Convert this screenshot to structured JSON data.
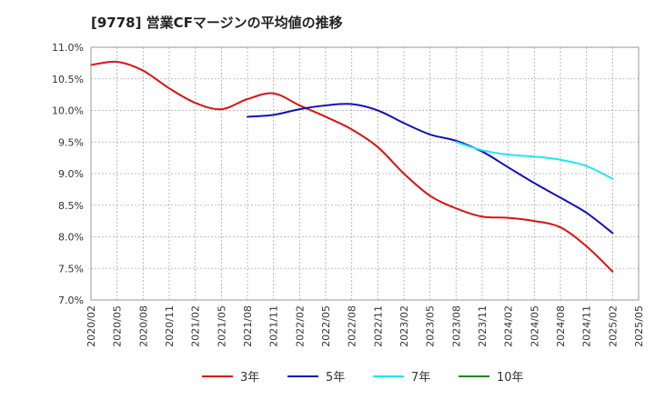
{
  "chart_data": {
    "type": "line",
    "title": "[9778]  営業CFマージンの平均値の推移",
    "xlabel": "",
    "ylabel": "",
    "ylim": [
      7.0,
      11.0
    ],
    "y_ticks": [
      "11.0%",
      "10.5%",
      "10.0%",
      "9.5%",
      "9.0%",
      "8.5%",
      "8.0%",
      "7.5%",
      "7.0%"
    ],
    "y_tick_values": [
      11.0,
      10.5,
      10.0,
      9.5,
      9.0,
      8.5,
      8.0,
      7.5,
      7.0
    ],
    "categories": [
      "2020/02",
      "2020/05",
      "2020/08",
      "2020/11",
      "2021/02",
      "2021/05",
      "2021/08",
      "2021/11",
      "2022/02",
      "2022/05",
      "2022/08",
      "2022/11",
      "2023/02",
      "2023/05",
      "2023/08",
      "2023/11",
      "2024/02",
      "2024/05",
      "2024/08",
      "2024/11",
      "2025/02",
      "2025/05"
    ],
    "grid": true,
    "legend_position": "bottom",
    "series": [
      {
        "name": "3年",
        "color": "#dd1111",
        "values": [
          10.72,
          10.77,
          10.63,
          10.35,
          10.12,
          10.02,
          10.18,
          10.27,
          10.08,
          9.9,
          9.7,
          9.42,
          9.0,
          8.65,
          8.45,
          8.32,
          8.3,
          8.25,
          8.15,
          7.85,
          7.45,
          null
        ]
      },
      {
        "name": "5年",
        "color": "#1111bb",
        "values": [
          null,
          null,
          null,
          null,
          null,
          null,
          9.9,
          9.93,
          10.02,
          10.08,
          10.1,
          10.0,
          9.8,
          9.62,
          9.52,
          9.35,
          9.1,
          8.85,
          8.62,
          8.38,
          8.06,
          null
        ]
      },
      {
        "name": "7年",
        "color": "#22e5f0",
        "values": [
          null,
          null,
          null,
          null,
          null,
          null,
          null,
          null,
          null,
          null,
          null,
          null,
          null,
          null,
          9.5,
          9.37,
          9.3,
          9.27,
          9.22,
          9.12,
          8.92,
          null
        ]
      },
      {
        "name": "10年",
        "color": "#228822",
        "values": [
          null,
          null,
          null,
          null,
          null,
          null,
          null,
          null,
          null,
          null,
          null,
          null,
          null,
          null,
          null,
          null,
          null,
          null,
          null,
          null,
          null,
          null
        ]
      }
    ]
  }
}
